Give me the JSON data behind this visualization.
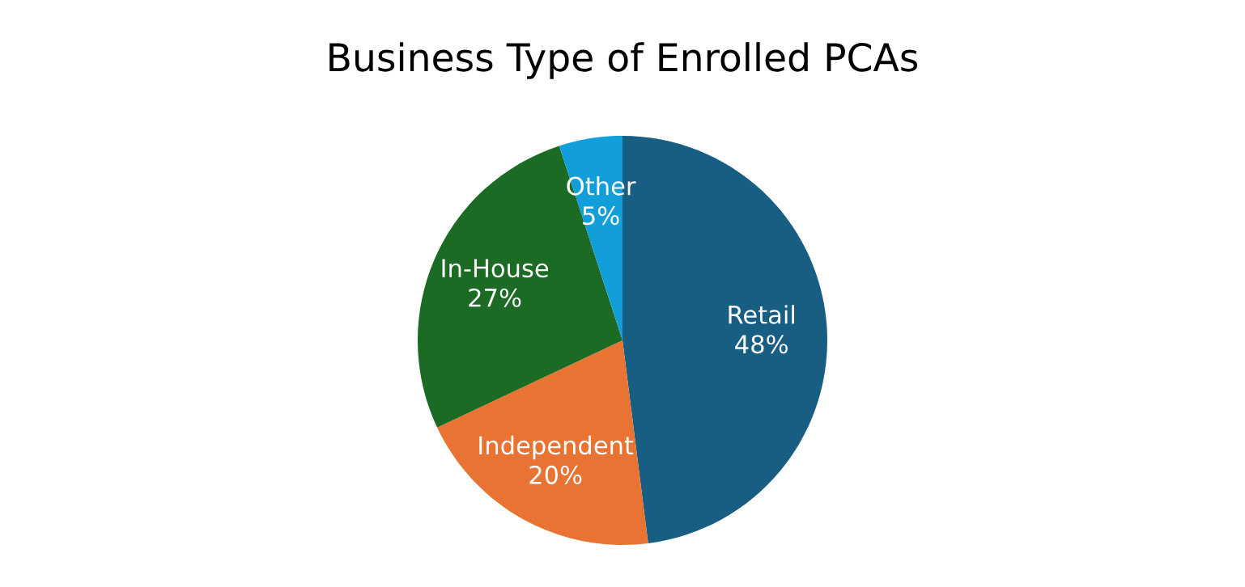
{
  "chart_data": {
    "type": "pie",
    "title": "Business Type of Enrolled PCAs",
    "categories": [
      "Retail",
      "Independent",
      "In-House",
      "Other"
    ],
    "values": [
      48,
      20,
      27,
      5
    ],
    "value_labels": [
      "48%",
      "20%",
      "27%",
      "5%"
    ],
    "colors": [
      "#175e82",
      "#e87332",
      "#1b6b24",
      "#129fd9"
    ]
  }
}
